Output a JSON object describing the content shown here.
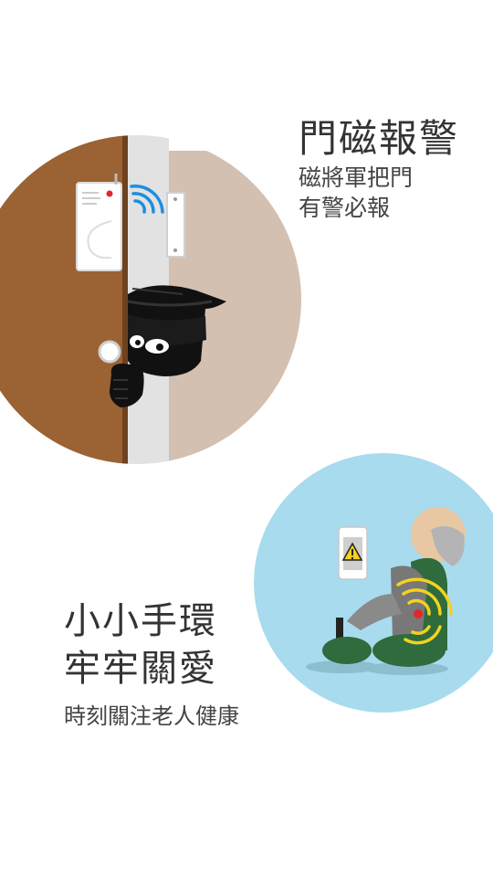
{
  "feature1": {
    "title": "門磁報警",
    "subtitle_lines": [
      "磁將軍把門",
      "有警必報"
    ]
  },
  "feature2": {
    "title_lines": [
      "小小手環",
      "牢牢關愛"
    ],
    "subtitle": "時刻關注老人健康"
  },
  "colors": {
    "background": "#ffffff",
    "door_brown": "#9b6233",
    "wall_beige": "#d4c0b0",
    "circle_blue": "#a8dbee",
    "wave_blue": "#1a8fe0",
    "wave_yellow": "#f4d21e",
    "chair_green": "#2f6b3d",
    "text": "#333333"
  }
}
